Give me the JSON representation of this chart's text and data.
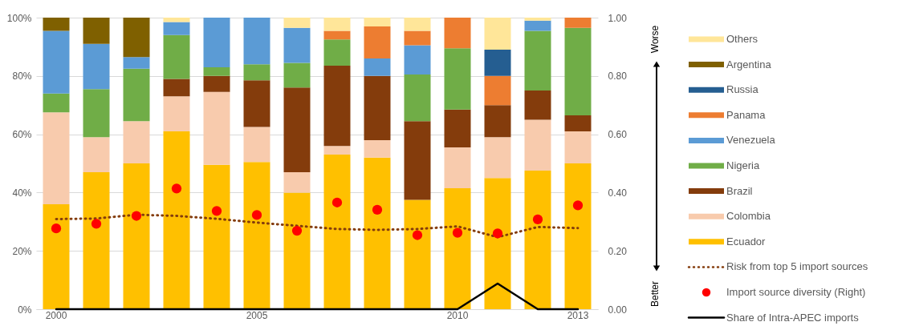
{
  "chart_data": {
    "type": "bar",
    "stacked": true,
    "grid": "y",
    "legend": "right",
    "categories": [
      "2000",
      null,
      null,
      null,
      null,
      "2005",
      null,
      null,
      null,
      null,
      "2010",
      null,
      null,
      "2013"
    ],
    "ylim": [
      0,
      100
    ],
    "yticks": [
      {
        "value": 0,
        "label": "0%"
      },
      {
        "value": 20,
        "label": "20%"
      },
      {
        "value": 40,
        "label": "40%"
      },
      {
        "value": 60,
        "label": "60%"
      },
      {
        "value": 80,
        "label": "80%"
      },
      {
        "value": 100,
        "label": "100%"
      }
    ],
    "y2lim": [
      0,
      1
    ],
    "y2ticks": [
      {
        "value": 0,
        "label": "0.00"
      },
      {
        "value": 0.2,
        "label": "0.20"
      },
      {
        "value": 0.4,
        "label": "0.40"
      },
      {
        "value": 0.6,
        "label": "0.60"
      },
      {
        "value": 0.8,
        "label": "0.80"
      },
      {
        "value": 1,
        "label": "1.00"
      }
    ],
    "annotations": [
      "Worse",
      "Better"
    ],
    "series": [
      {
        "name": "Ecuador",
        "type": "bar",
        "color": "#ffc000",
        "values": [
          36,
          47,
          50,
          61,
          49.5,
          50.5,
          40,
          53,
          52,
          37.5,
          41.5,
          45,
          47.5,
          50
        ]
      },
      {
        "name": "Colombia",
        "type": "bar",
        "color": "#f8cbad",
        "values": [
          31.5,
          12,
          14.5,
          12,
          25,
          12,
          7,
          3,
          6,
          null,
          14,
          14,
          17.5,
          11
        ]
      },
      {
        "name": "Brazil",
        "type": "bar",
        "color": "#843c0c",
        "values": [
          null,
          null,
          null,
          6,
          5.5,
          16,
          29,
          27.5,
          22,
          27,
          13,
          11,
          10,
          5.5
        ]
      },
      {
        "name": "Nigeria",
        "type": "bar",
        "color": "#70ad47",
        "values": [
          6.5,
          16.5,
          18,
          15,
          3,
          5.5,
          8.5,
          9,
          null,
          16,
          21,
          null,
          20.5,
          30
        ]
      },
      {
        "name": "Venezuela",
        "type": "bar",
        "color": "#5b9bd5",
        "values": [
          21.5,
          15.5,
          4,
          4.5,
          17,
          16,
          12,
          null,
          6,
          10,
          null,
          null,
          3.5,
          null
        ]
      },
      {
        "name": "Panama",
        "type": "bar",
        "color": "#ed7d31",
        "values": [
          null,
          null,
          null,
          null,
          null,
          null,
          null,
          3,
          11,
          5,
          10.5,
          10,
          null,
          3.5
        ]
      },
      {
        "name": "Russia",
        "type": "bar",
        "color": "#255e91",
        "values": [
          null,
          null,
          null,
          null,
          null,
          null,
          null,
          null,
          null,
          null,
          null,
          9,
          null,
          null
        ]
      },
      {
        "name": "Argentina",
        "type": "bar",
        "color": "#7f6000",
        "values": [
          4.5,
          9,
          13.5,
          null,
          null,
          null,
          null,
          null,
          null,
          null,
          null,
          null,
          null,
          null
        ]
      },
      {
        "name": "Others",
        "type": "bar",
        "color": "#ffe699",
        "values": [
          null,
          null,
          null,
          1.5,
          null,
          null,
          3.5,
          4.5,
          3,
          4.5,
          null,
          11,
          1,
          null
        ]
      },
      {
        "name": "Risk from top 5 import sources",
        "type": "line",
        "line_style": "dotted",
        "color": "#843c0c",
        "values": [
          30.9,
          31.1,
          32.4,
          32,
          31,
          29.7,
          28.6,
          27.5,
          27.2,
          27.5,
          28.4,
          24.7,
          28.2,
          27.8
        ]
      },
      {
        "name": "Import source diversity (Right)",
        "type": "scatter",
        "axis": "y2",
        "marker": "circle",
        "color": "#ff0000",
        "values": [
          0.277,
          0.293,
          0.32,
          0.414,
          0.337,
          0.323,
          0.269,
          0.366,
          0.341,
          0.254,
          0.262,
          0.26,
          0.308,
          0.356
        ]
      },
      {
        "name": "Share of Intra-APEC imports",
        "type": "line",
        "line_style": "solid",
        "color": "#000000",
        "values": [
          0,
          0,
          0,
          0,
          0,
          0,
          0,
          0,
          0,
          0,
          0,
          8.8,
          0,
          0
        ]
      }
    ]
  }
}
